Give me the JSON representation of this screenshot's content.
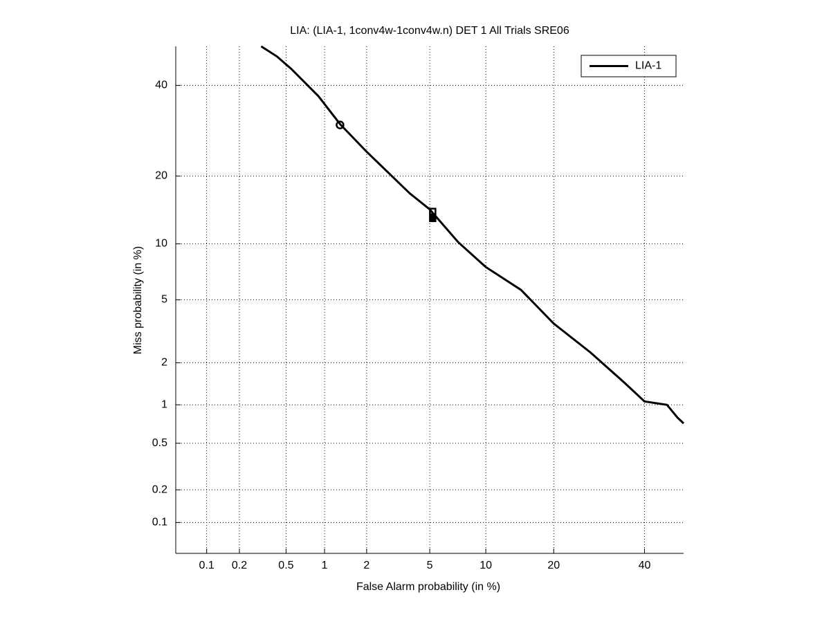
{
  "chart_data": {
    "type": "line",
    "scale": "probit",
    "grid": true,
    "legend": "upper right",
    "title": "LIA: (LIA-1, 1conv4w-1conv4w.n) DET 1 All Trials SRE06",
    "xlabel": "False Alarm probability (in %)",
    "ylabel": "Miss probability (in %)",
    "xlim": [
      0.05,
      50
    ],
    "ylim": [
      0.05,
      50
    ],
    "xticks": [
      0.1,
      0.2,
      0.5,
      1,
      2,
      5,
      10,
      20,
      40
    ],
    "yticks": [
      0.1,
      0.2,
      0.5,
      1,
      2,
      5,
      10,
      20,
      40
    ],
    "series": [
      {
        "name": "LIA-1",
        "color": "#000000",
        "x": [
          0.31,
          0.42,
          0.55,
          0.9,
          1.3,
          2,
          3.8,
          5,
          7.2,
          10,
          14.6,
          20,
          27.3,
          35.2,
          40,
          45.7,
          48.4,
          50
        ],
        "values": [
          50,
          47.4,
          44.2,
          37.3,
          30.7,
          24.7,
          17,
          14.5,
          10.2,
          7.6,
          5.7,
          3.6,
          2.35,
          1.44,
          1.06,
          1.0,
          0.8,
          0.72
        ]
      }
    ],
    "markers": [
      {
        "x": 1.3,
        "y": 30.5,
        "shape": "circle"
      },
      {
        "x": 5.2,
        "y": 14.2,
        "shape": "square"
      },
      {
        "x": 5.2,
        "y": 13.2,
        "shape": "square-filled"
      }
    ]
  }
}
